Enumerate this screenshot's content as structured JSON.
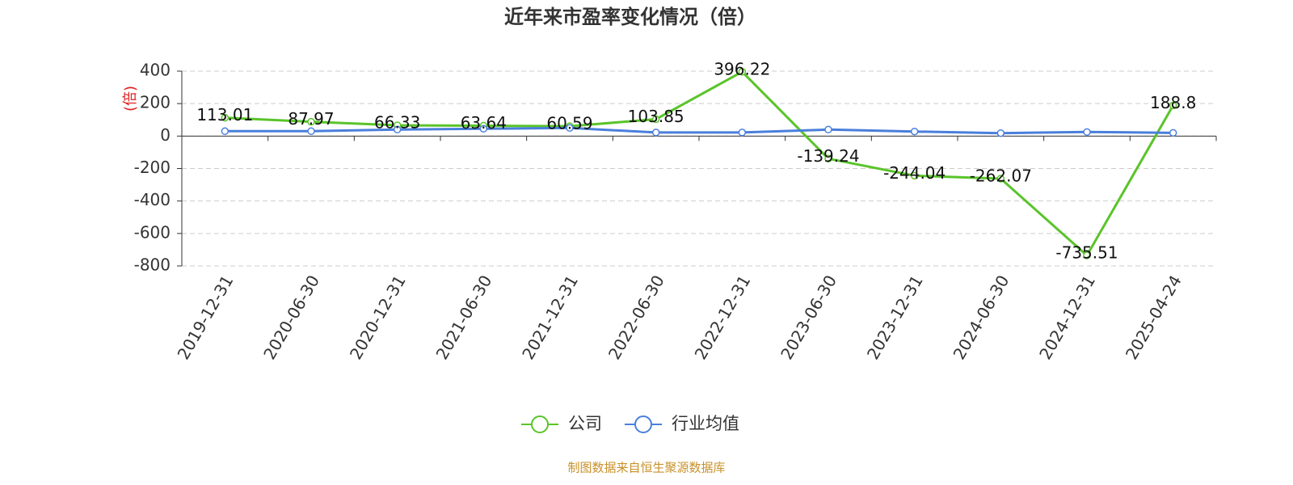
{
  "chart_data": {
    "type": "line",
    "title": "近年来市盈率变化情况（倍）",
    "y_label": "(倍)",
    "categories": [
      "2019-12-31",
      "2020-06-30",
      "2020-12-31",
      "2021-06-30",
      "2021-12-31",
      "2022-06-30",
      "2022-12-31",
      "2023-06-30",
      "2023-12-31",
      "2024-06-30",
      "2024-12-31",
      "2025-04-24"
    ],
    "series": [
      {
        "name": "公司",
        "color": "#5ac42a",
        "values": [
          113.01,
          87.97,
          66.33,
          63.64,
          60.59,
          103.85,
          396.22,
          -139.24,
          -244.04,
          -262.07,
          -735.51,
          188.8
        ],
        "show_labels": true
      },
      {
        "name": "行业均值",
        "color": "#4a7fdc",
        "values": [
          30,
          30,
          40,
          45,
          50,
          22,
          22,
          40,
          28,
          18,
          25,
          20
        ],
        "show_labels": false
      }
    ],
    "ylim": [
      -800,
      400
    ],
    "yticks": [
      -800,
      -600,
      -400,
      -200,
      0,
      200,
      400
    ],
    "grid": true,
    "source": "制图数据来自恒生聚源数据库"
  }
}
